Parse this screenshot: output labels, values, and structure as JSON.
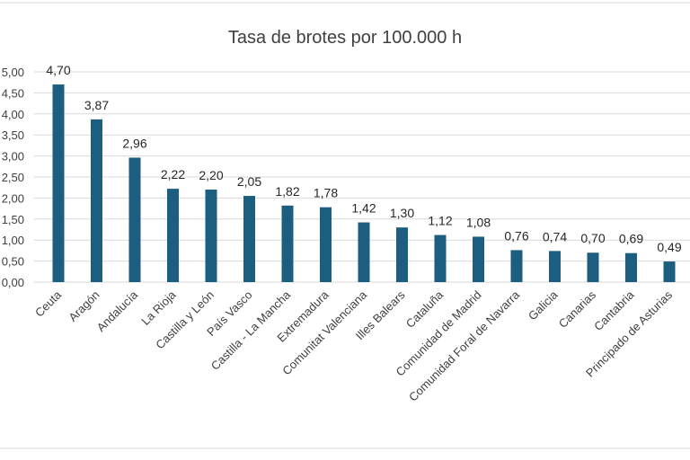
{
  "chart_data": {
    "type": "bar",
    "title": "Tasa de brotes por 100.000 h",
    "xlabel": "",
    "ylabel": "",
    "ylim": [
      0,
      5
    ],
    "yticks": [
      "0,00",
      "0,50",
      "1,00",
      "1,50",
      "2,00",
      "2,50",
      "3,00",
      "3,50",
      "4,00",
      "4,50",
      "5,00"
    ],
    "grid": true,
    "legend": "none",
    "bar_color": "#1b5e7f",
    "categories": [
      "Ceuta",
      "Aragón",
      "Andalucía",
      "La Rioja",
      "Castilla y León",
      "País Vasco",
      "Castilla - La Mancha",
      "Extremadura",
      "Comunitat Valenciana",
      "Illes Balears",
      "Cataluña",
      "Comunidad de Madrid",
      "Comunidad Foral de Navarra",
      "Galicia",
      "Canarias",
      "Cantabria",
      "Principado de Asturias"
    ],
    "values": [
      4.7,
      3.87,
      2.96,
      2.22,
      2.2,
      2.05,
      1.82,
      1.78,
      1.42,
      1.3,
      1.12,
      1.08,
      0.76,
      0.74,
      0.7,
      0.69,
      0.49
    ],
    "data_labels": [
      "4,70",
      "3,87",
      "2,96",
      "2,22",
      "2,20",
      "2,05",
      "1,82",
      "1,78",
      "1,42",
      "1,30",
      "1,12",
      "1,08",
      "0,76",
      "0,74",
      "0,70",
      "0,69",
      "0,49"
    ]
  }
}
